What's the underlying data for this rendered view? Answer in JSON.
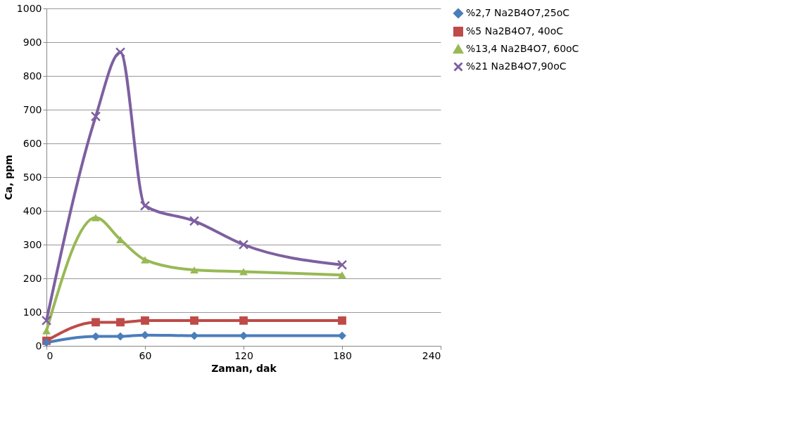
{
  "chart_data": {
    "type": "line",
    "xlabel": "Zaman, dak",
    "ylabel": "Ca, ppm",
    "x": [
      0,
      30,
      45,
      60,
      90,
      120,
      180
    ],
    "series": [
      {
        "name": "%2,7 Na2B4O7,25oC",
        "color": "#4a7ebb",
        "marker": "diamond",
        "values": [
          10,
          28,
          28,
          32,
          30,
          30,
          30
        ]
      },
      {
        "name": "%5 Na2B4O7, 40oC",
        "color": "#be4b48",
        "marker": "square",
        "values": [
          15,
          70,
          70,
          75,
          75,
          75,
          75
        ]
      },
      {
        "name": "%13,4 Na2B4O7, 60oC",
        "color": "#98b954",
        "marker": "triangle",
        "values": [
          45,
          380,
          315,
          255,
          225,
          220,
          210
        ]
      },
      {
        "name": "%21 Na2B4O7,90oC",
        "color": "#7d60a0",
        "marker": "cross",
        "values": [
          75,
          680,
          870,
          415,
          370,
          300,
          240
        ]
      }
    ],
    "xlim": [
      0,
      240
    ],
    "xticks": [
      0,
      60,
      120,
      180,
      240
    ],
    "ylim": [
      0,
      1000
    ],
    "yticks": [
      0,
      100,
      200,
      300,
      400,
      500,
      600,
      700,
      800,
      900,
      1000
    ],
    "grid": "y",
    "legend": "right",
    "line_style": "solid"
  }
}
